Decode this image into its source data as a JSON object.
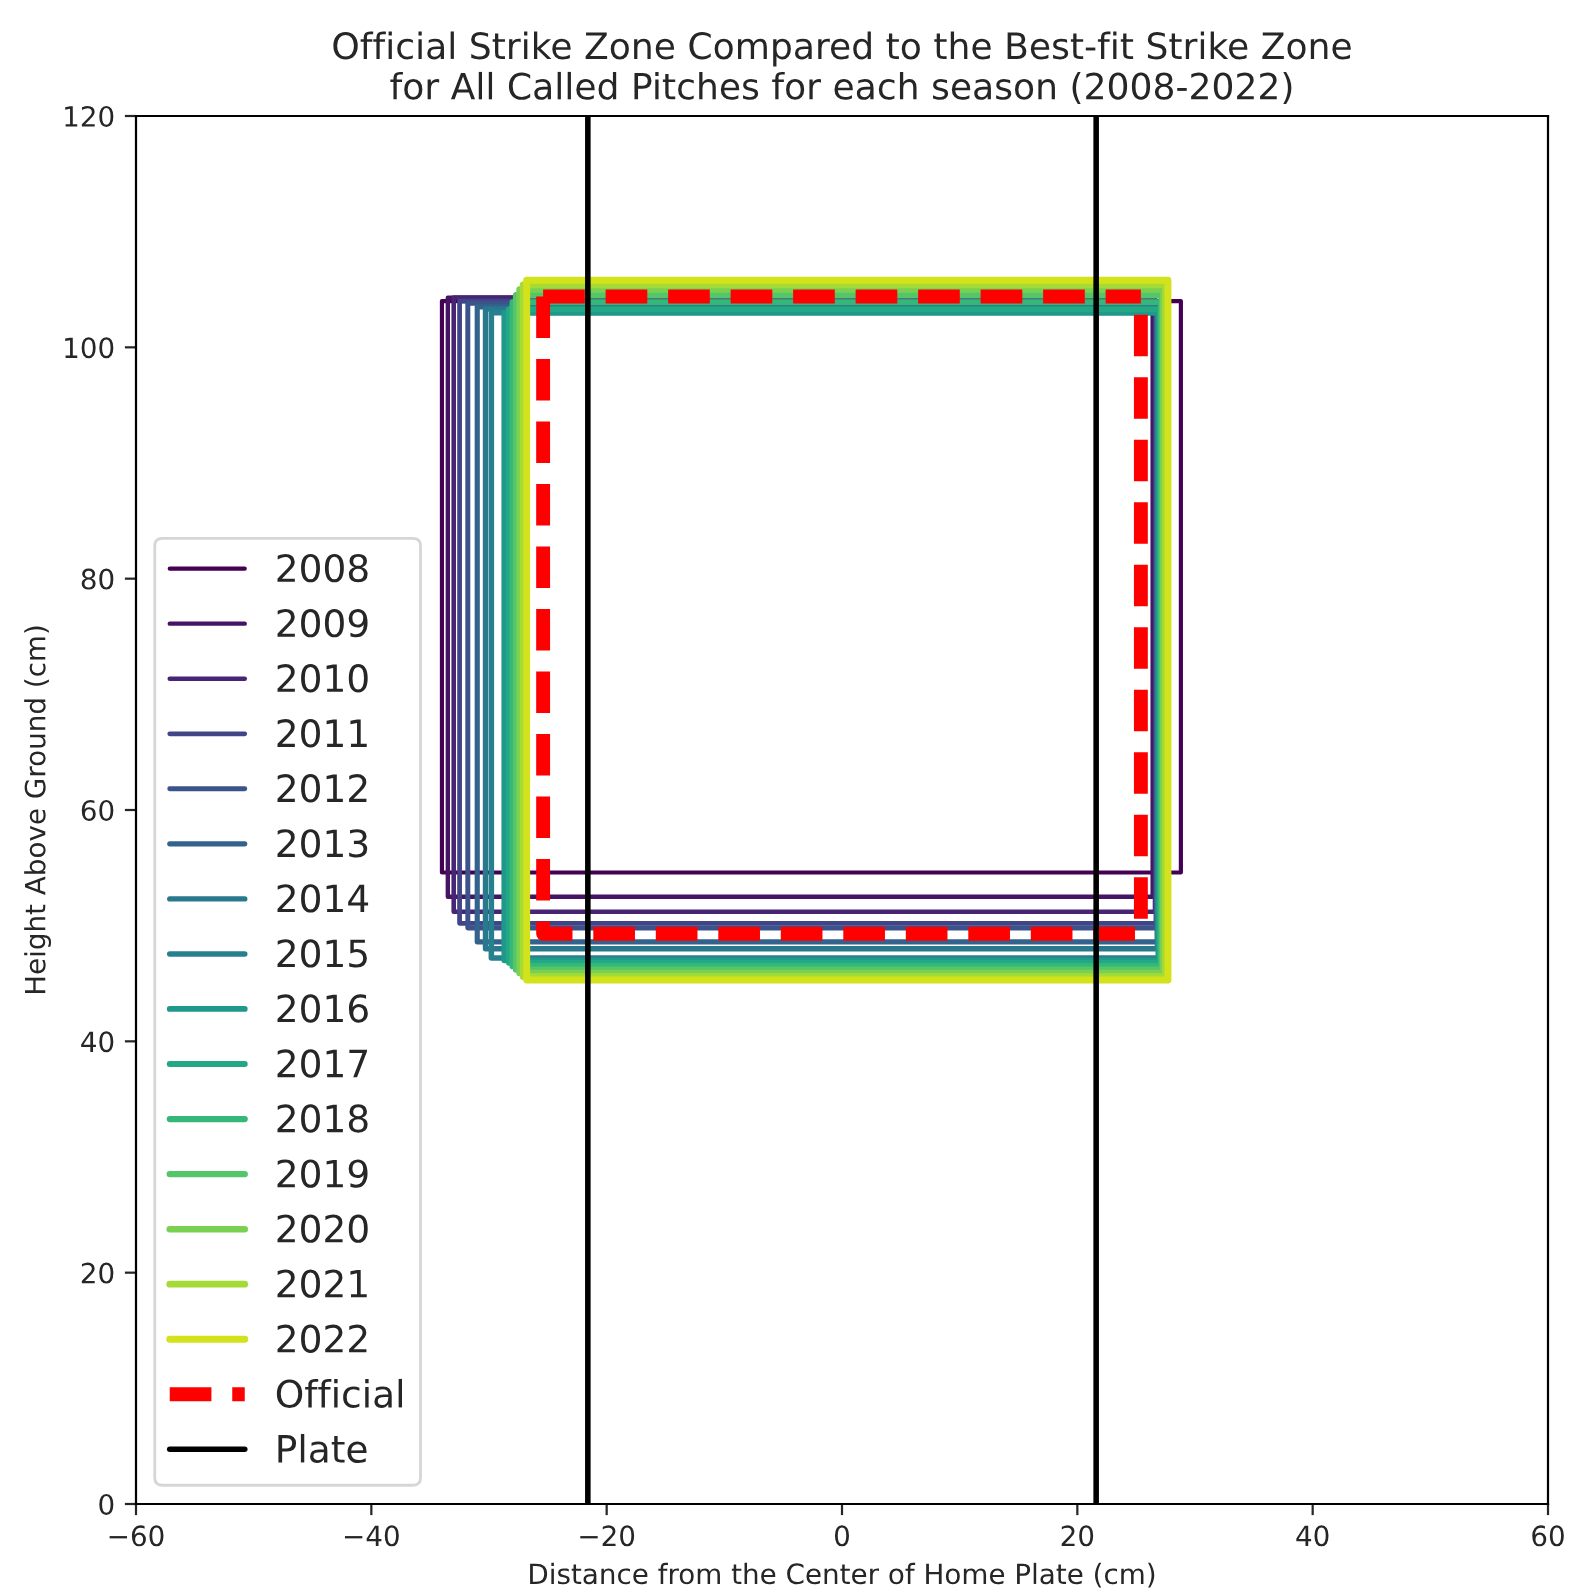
{
  "chart_data": {
    "type": "line",
    "title": "Official Strike Zone Compared to the Best-fit Strike Zone\nfor All Called Pitches for each season (2008-2022)",
    "xlabel": "Distance from the Center of Home Plate (cm)",
    "ylabel": "Height Above Ground (cm)",
    "xlim": [
      -60,
      60
    ],
    "xticks": [
      {
        "value": -60,
        "label": "−60"
      },
      {
        "value": -40,
        "label": "−40"
      },
      {
        "value": -20,
        "label": "−20"
      },
      0,
      20,
      40,
      60
    ],
    "ylim": [
      0,
      120
    ],
    "yticks": [
      0,
      20,
      40,
      60,
      80,
      100,
      120
    ],
    "grid": false,
    "legend": "bottom left",
    "series": [
      {
        "name": "2008",
        "color": "#440154",
        "x": [
          -34.0,
          -34.0,
          28.8,
          28.8,
          null,
          -34.0,
          28.8
        ],
        "values": [
          104.0,
          54.6,
          54.6,
          104.0,
          null,
          104.0,
          104.0
        ]
      },
      {
        "name": "2009",
        "color": "#471365",
        "x": [
          -33.5,
          -33.5,
          26.4,
          26.4,
          null,
          -33.5,
          26.4
        ],
        "values": [
          104.3,
          52.5,
          52.5,
          104.3,
          null,
          104.3,
          104.3
        ]
      },
      {
        "name": "2010",
        "color": "#482475",
        "x": [
          -33.0,
          -33.0,
          26.6,
          26.6,
          null,
          -33.0,
          26.6
        ],
        "values": [
          104.3,
          51.2,
          51.2,
          104.3,
          null,
          104.3,
          104.3
        ]
      },
      {
        "name": "2011",
        "color": "#414487",
        "x": [
          -32.5,
          -32.5,
          26.7,
          26.7,
          null,
          -32.5,
          26.7
        ],
        "values": [
          104.0,
          50.2,
          50.2,
          104.0,
          null,
          104.0,
          104.0
        ]
      },
      {
        "name": "2012",
        "color": "#3b528b",
        "x": [
          -31.8,
          -31.8,
          26.7,
          26.7,
          null,
          -31.8,
          26.7
        ],
        "values": [
          103.8,
          49.8,
          49.8,
          103.8,
          null,
          103.8,
          103.8
        ]
      },
      {
        "name": "2013",
        "color": "#33638d",
        "x": [
          -31.0,
          -31.0,
          26.8,
          26.8,
          null,
          -31.0,
          26.8
        ],
        "values": [
          103.5,
          48.6,
          48.6,
          103.5,
          null,
          103.5,
          103.5
        ]
      },
      {
        "name": "2014",
        "color": "#2a788e",
        "x": [
          -30.3,
          -30.3,
          26.8,
          26.8,
          null,
          -30.3,
          26.8
        ],
        "values": [
          103.3,
          48.0,
          48.0,
          103.3,
          null,
          103.3,
          103.3
        ]
      },
      {
        "name": "2015",
        "color": "#27808e",
        "x": [
          -29.8,
          -29.8,
          26.9,
          26.9,
          null,
          -29.8,
          26.9
        ],
        "values": [
          103.0,
          47.2,
          47.2,
          103.0,
          null,
          103.0,
          103.0
        ]
      },
      {
        "name": "2016",
        "color": "#1f988b",
        "x": [
          -28.7,
          -28.7,
          26.9,
          26.9,
          null,
          -28.7,
          26.9
        ],
        "values": [
          103.0,
          47.0,
          47.0,
          103.0,
          null,
          103.0,
          103.0
        ]
      },
      {
        "name": "2017",
        "color": "#22a884",
        "x": [
          -28.3,
          -28.3,
          27.0,
          27.0,
          null,
          -28.3,
          27.0
        ],
        "values": [
          103.3,
          46.8,
          46.8,
          103.3,
          null,
          103.3,
          103.3
        ]
      },
      {
        "name": "2018",
        "color": "#35b779",
        "x": [
          -28.0,
          -28.0,
          27.1,
          27.1,
          null,
          -28.0,
          27.1
        ],
        "values": [
          103.9,
          46.5,
          46.5,
          103.9,
          null,
          103.9,
          103.9
        ]
      },
      {
        "name": "2019",
        "color": "#54c568",
        "x": [
          -27.7,
          -27.7,
          27.2,
          27.2,
          null,
          -27.7,
          27.2
        ],
        "values": [
          104.5,
          46.2,
          46.2,
          104.5,
          null,
          104.5,
          104.5
        ]
      },
      {
        "name": "2020",
        "color": "#7ad151",
        "x": [
          -27.4,
          -27.4,
          27.3,
          27.3,
          null,
          -27.4,
          27.3
        ],
        "values": [
          105.0,
          45.9,
          45.9,
          105.0,
          null,
          105.0,
          105.0
        ]
      },
      {
        "name": "2021",
        "color": "#a5db36",
        "x": [
          -27.1,
          -27.1,
          27.5,
          27.5,
          null,
          -27.1,
          27.5
        ],
        "values": [
          105.4,
          45.6,
          45.6,
          105.4,
          null,
          105.4,
          105.4
        ]
      },
      {
        "name": "2022",
        "color": "#d2e21b",
        "x": [
          -26.8,
          -26.8,
          27.7,
          27.7,
          null,
          -26.8,
          27.7
        ],
        "values": [
          105.8,
          45.3,
          45.3,
          105.8,
          null,
          105.8,
          105.8
        ]
      },
      {
        "name": "Official",
        "color": "#ff0000",
        "line_style": "dashed",
        "x": [
          -25.4,
          -25.4,
          25.4,
          25.4,
          null,
          -25.4,
          25.4
        ],
        "values": [
          104.4,
          49.3,
          49.3,
          104.4,
          null,
          104.4,
          104.4
        ]
      },
      {
        "name": "Plate",
        "color": "#000000",
        "x": [
          -21.6,
          -21.6,
          null,
          21.6,
          21.6
        ],
        "values": [
          0,
          120,
          null,
          0,
          120
        ]
      }
    ]
  }
}
